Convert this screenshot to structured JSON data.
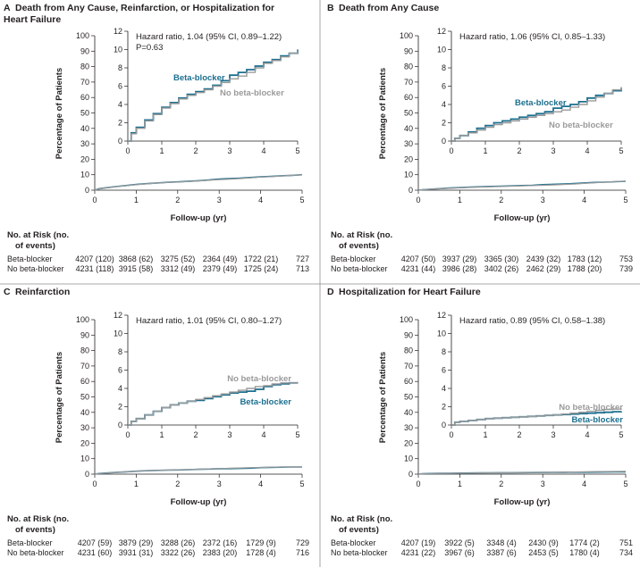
{
  "figure": {
    "y_axis_label": "Percentage of Patients",
    "x_axis_label": "Follow-up (yr)",
    "risk_header": "No. at Risk (no. of events)",
    "colors": {
      "beta_blocker": "#1c6f8f",
      "no_beta_blocker": "#9a9a9a",
      "text": "#231f20",
      "divider": "#8c8c8c"
    }
  },
  "chart_data": [
    {
      "type": "line",
      "panel_letter": "A",
      "title": "Death from Any Cause, Reinfarction, or Hospitalization for Heart Failure",
      "annotation": "Hazard ratio, 1.04 (95% CI, 0.89–1.22)",
      "p_value": "P=0.63",
      "xlabel": "Follow-up (yr)",
      "ylabel": "Percentage of Patients",
      "xlim": [
        0,
        5
      ],
      "ylim_outer": [
        0,
        100
      ],
      "ylim_inset": [
        0,
        12
      ],
      "x_ticks": [
        0,
        1,
        2,
        3,
        4,
        5
      ],
      "y_ticks_outer": [
        0,
        10,
        20,
        30,
        40,
        50,
        60,
        70,
        80,
        90,
        100
      ],
      "y_ticks_inset": [
        0,
        2,
        4,
        6,
        8,
        10,
        12
      ],
      "grid": false,
      "legend": "inline labels",
      "x": [
        0,
        0.1,
        0.25,
        0.5,
        0.75,
        1,
        1.25,
        1.5,
        1.75,
        2,
        2.25,
        2.5,
        2.75,
        3,
        3.25,
        3.5,
        3.75,
        4,
        4.25,
        4.5,
        4.75,
        5
      ],
      "series": [
        {
          "name": "Beta-blocker",
          "color": "#1c6f8f",
          "values": [
            0,
            0.9,
            1.5,
            2.3,
            3.0,
            3.7,
            4.2,
            4.7,
            5.1,
            5.4,
            5.7,
            6.1,
            6.6,
            7.2,
            7.5,
            7.8,
            8.2,
            8.6,
            8.9,
            9.3,
            9.6,
            10.0
          ]
        },
        {
          "name": "No beta-blocker",
          "color": "#9a9a9a",
          "values": [
            0,
            0.8,
            1.4,
            2.2,
            2.9,
            3.6,
            4.1,
            4.6,
            5.0,
            5.3,
            5.6,
            6.0,
            6.4,
            6.8,
            7.1,
            7.5,
            8.0,
            8.5,
            8.8,
            9.2,
            9.6,
            9.9
          ]
        }
      ],
      "risk_table": {
        "rows": [
          {
            "label": "Beta-blocker",
            "cells": [
              "4207 (120)",
              "3868 (62)",
              "3275 (52)",
              "2364 (49)",
              "1722 (21)",
              "727"
            ]
          },
          {
            "label": "No beta-blocker",
            "cells": [
              "4231 (118)",
              "3915 (58)",
              "3312 (49)",
              "2379 (49)",
              "1725 (24)",
              "713"
            ]
          }
        ]
      }
    },
    {
      "type": "line",
      "panel_letter": "B",
      "title": "Death from Any Cause",
      "annotation": "Hazard ratio, 1.06 (95% CI, 0.85–1.33)",
      "p_value": "",
      "xlabel": "Follow-up (yr)",
      "ylabel": "Percentage of Patients",
      "xlim": [
        0,
        5
      ],
      "ylim_outer": [
        0,
        100
      ],
      "ylim_inset": [
        0,
        12
      ],
      "x_ticks": [
        0,
        1,
        2,
        3,
        4,
        5
      ],
      "y_ticks_outer": [
        0,
        10,
        20,
        30,
        40,
        50,
        60,
        70,
        80,
        90,
        100
      ],
      "y_ticks_inset": [
        0,
        2,
        4,
        6,
        8,
        10,
        12
      ],
      "grid": false,
      "legend": "inline labels",
      "x": [
        0,
        0.1,
        0.25,
        0.5,
        0.75,
        1,
        1.25,
        1.5,
        1.75,
        2,
        2.25,
        2.5,
        2.75,
        3,
        3.25,
        3.5,
        3.75,
        4,
        4.25,
        4.5,
        4.75,
        5
      ],
      "series": [
        {
          "name": "Beta-blocker",
          "color": "#1c6f8f",
          "values": [
            0,
            0.3,
            0.6,
            1.0,
            1.4,
            1.7,
            2.0,
            2.2,
            2.4,
            2.6,
            2.8,
            3.0,
            3.2,
            3.6,
            3.8,
            4.0,
            4.3,
            4.7,
            5.0,
            5.2,
            5.5,
            5.8
          ]
        },
        {
          "name": "No beta-blocker",
          "color": "#9a9a9a",
          "values": [
            0,
            0.3,
            0.6,
            0.9,
            1.2,
            1.5,
            1.8,
            2.0,
            2.2,
            2.4,
            2.6,
            2.8,
            3.0,
            3.2,
            3.4,
            3.7,
            4.0,
            4.4,
            4.8,
            5.2,
            5.6,
            5.9
          ]
        }
      ],
      "risk_table": {
        "rows": [
          {
            "label": "Beta-blocker",
            "cells": [
              "4207 (50)",
              "3937 (29)",
              "3365 (30)",
              "2439 (32)",
              "1783 (12)",
              "753"
            ]
          },
          {
            "label": "No beta-blocker",
            "cells": [
              "4231 (44)",
              "3986 (28)",
              "3402 (26)",
              "2462 (29)",
              "1788 (20)",
              "739"
            ]
          }
        ]
      }
    },
    {
      "type": "line",
      "panel_letter": "C",
      "title": "Reinfarction",
      "annotation": "Hazard ratio, 1.01 (95% CI, 0.80–1.27)",
      "p_value": "",
      "xlabel": "Follow-up (yr)",
      "ylabel": "Percentage of Patients",
      "xlim": [
        0,
        5
      ],
      "ylim_outer": [
        0,
        100
      ],
      "ylim_inset": [
        0,
        12
      ],
      "x_ticks": [
        0,
        1,
        2,
        3,
        4,
        5
      ],
      "y_ticks_outer": [
        0,
        10,
        20,
        30,
        40,
        50,
        60,
        70,
        80,
        90,
        100
      ],
      "y_ticks_inset": [
        0,
        2,
        4,
        6,
        8,
        10,
        12
      ],
      "grid": false,
      "legend": "inline labels",
      "x": [
        0,
        0.1,
        0.25,
        0.5,
        0.75,
        1,
        1.25,
        1.5,
        1.75,
        2,
        2.25,
        2.5,
        2.75,
        3,
        3.25,
        3.5,
        3.75,
        4,
        4.25,
        4.5,
        4.75,
        5
      ],
      "series": [
        {
          "name": "Beta-blocker",
          "color": "#1c6f8f",
          "values": [
            0,
            0.4,
            0.7,
            1.1,
            1.5,
            1.9,
            2.2,
            2.4,
            2.6,
            2.7,
            2.9,
            3.1,
            3.3,
            3.5,
            3.6,
            3.7,
            3.9,
            4.2,
            4.4,
            4.5,
            4.6,
            4.6
          ]
        },
        {
          "name": "No beta-blocker",
          "color": "#9a9a9a",
          "values": [
            0,
            0.4,
            0.7,
            1.1,
            1.5,
            1.9,
            2.2,
            2.4,
            2.6,
            2.8,
            3.0,
            3.2,
            3.4,
            3.6,
            3.8,
            4.0,
            4.2,
            4.3,
            4.5,
            4.6,
            4.6,
            4.7
          ]
        }
      ],
      "risk_table": {
        "rows": [
          {
            "label": "Beta-blocker",
            "cells": [
              "4207 (59)",
              "3879 (29)",
              "3288 (26)",
              "2372 (16)",
              "1729 (9)",
              "729"
            ]
          },
          {
            "label": "No beta-blocker",
            "cells": [
              "4231 (60)",
              "3931 (31)",
              "3322 (26)",
              "2383 (20)",
              "1728 (4)",
              "716"
            ]
          }
        ]
      }
    },
    {
      "type": "line",
      "panel_letter": "D",
      "title": "Hospitalization for Heart Failure",
      "annotation": "Hazard ratio, 0.89 (95% CI, 0.58–1.38)",
      "p_value": "",
      "xlabel": "Follow-up (yr)",
      "ylabel": "Percentage of Patients",
      "xlim": [
        0,
        5
      ],
      "ylim_outer": [
        0,
        100
      ],
      "ylim_inset": [
        0,
        12
      ],
      "x_ticks": [
        0,
        1,
        2,
        3,
        4,
        5
      ],
      "y_ticks_outer": [
        0,
        10,
        20,
        30,
        40,
        50,
        60,
        70,
        80,
        90,
        100
      ],
      "y_ticks_inset": [
        0,
        2,
        4,
        6,
        8,
        10,
        12
      ],
      "grid": false,
      "legend": "inline labels",
      "x": [
        0,
        0.1,
        0.25,
        0.5,
        0.75,
        1,
        1.25,
        1.5,
        1.75,
        2,
        2.25,
        2.5,
        2.75,
        3,
        3.25,
        3.5,
        3.75,
        4,
        4.25,
        4.5,
        4.75,
        5
      ],
      "series": [
        {
          "name": "Beta-blocker",
          "color": "#1c6f8f",
          "values": [
            0,
            0.3,
            0.4,
            0.5,
            0.6,
            0.7,
            0.75,
            0.8,
            0.85,
            0.9,
            0.95,
            1.0,
            1.05,
            1.1,
            1.15,
            1.2,
            1.25,
            1.3,
            1.35,
            1.4,
            1.45,
            1.5
          ]
        },
        {
          "name": "No beta-blocker",
          "color": "#9a9a9a",
          "values": [
            0,
            0.3,
            0.4,
            0.5,
            0.6,
            0.7,
            0.75,
            0.8,
            0.85,
            0.9,
            0.95,
            1.0,
            1.05,
            1.1,
            1.2,
            1.3,
            1.4,
            1.5,
            1.6,
            1.7,
            1.75,
            1.8
          ]
        }
      ],
      "risk_table": {
        "rows": [
          {
            "label": "Beta-blocker",
            "cells": [
              "4207 (19)",
              "3922 (5)",
              "3348 (4)",
              "2430 (9)",
              "1774 (2)",
              "751"
            ]
          },
          {
            "label": "No beta-blocker",
            "cells": [
              "4231 (22)",
              "3967 (6)",
              "3387 (6)",
              "2453 (5)",
              "1780 (4)",
              "734"
            ]
          }
        ]
      }
    }
  ]
}
